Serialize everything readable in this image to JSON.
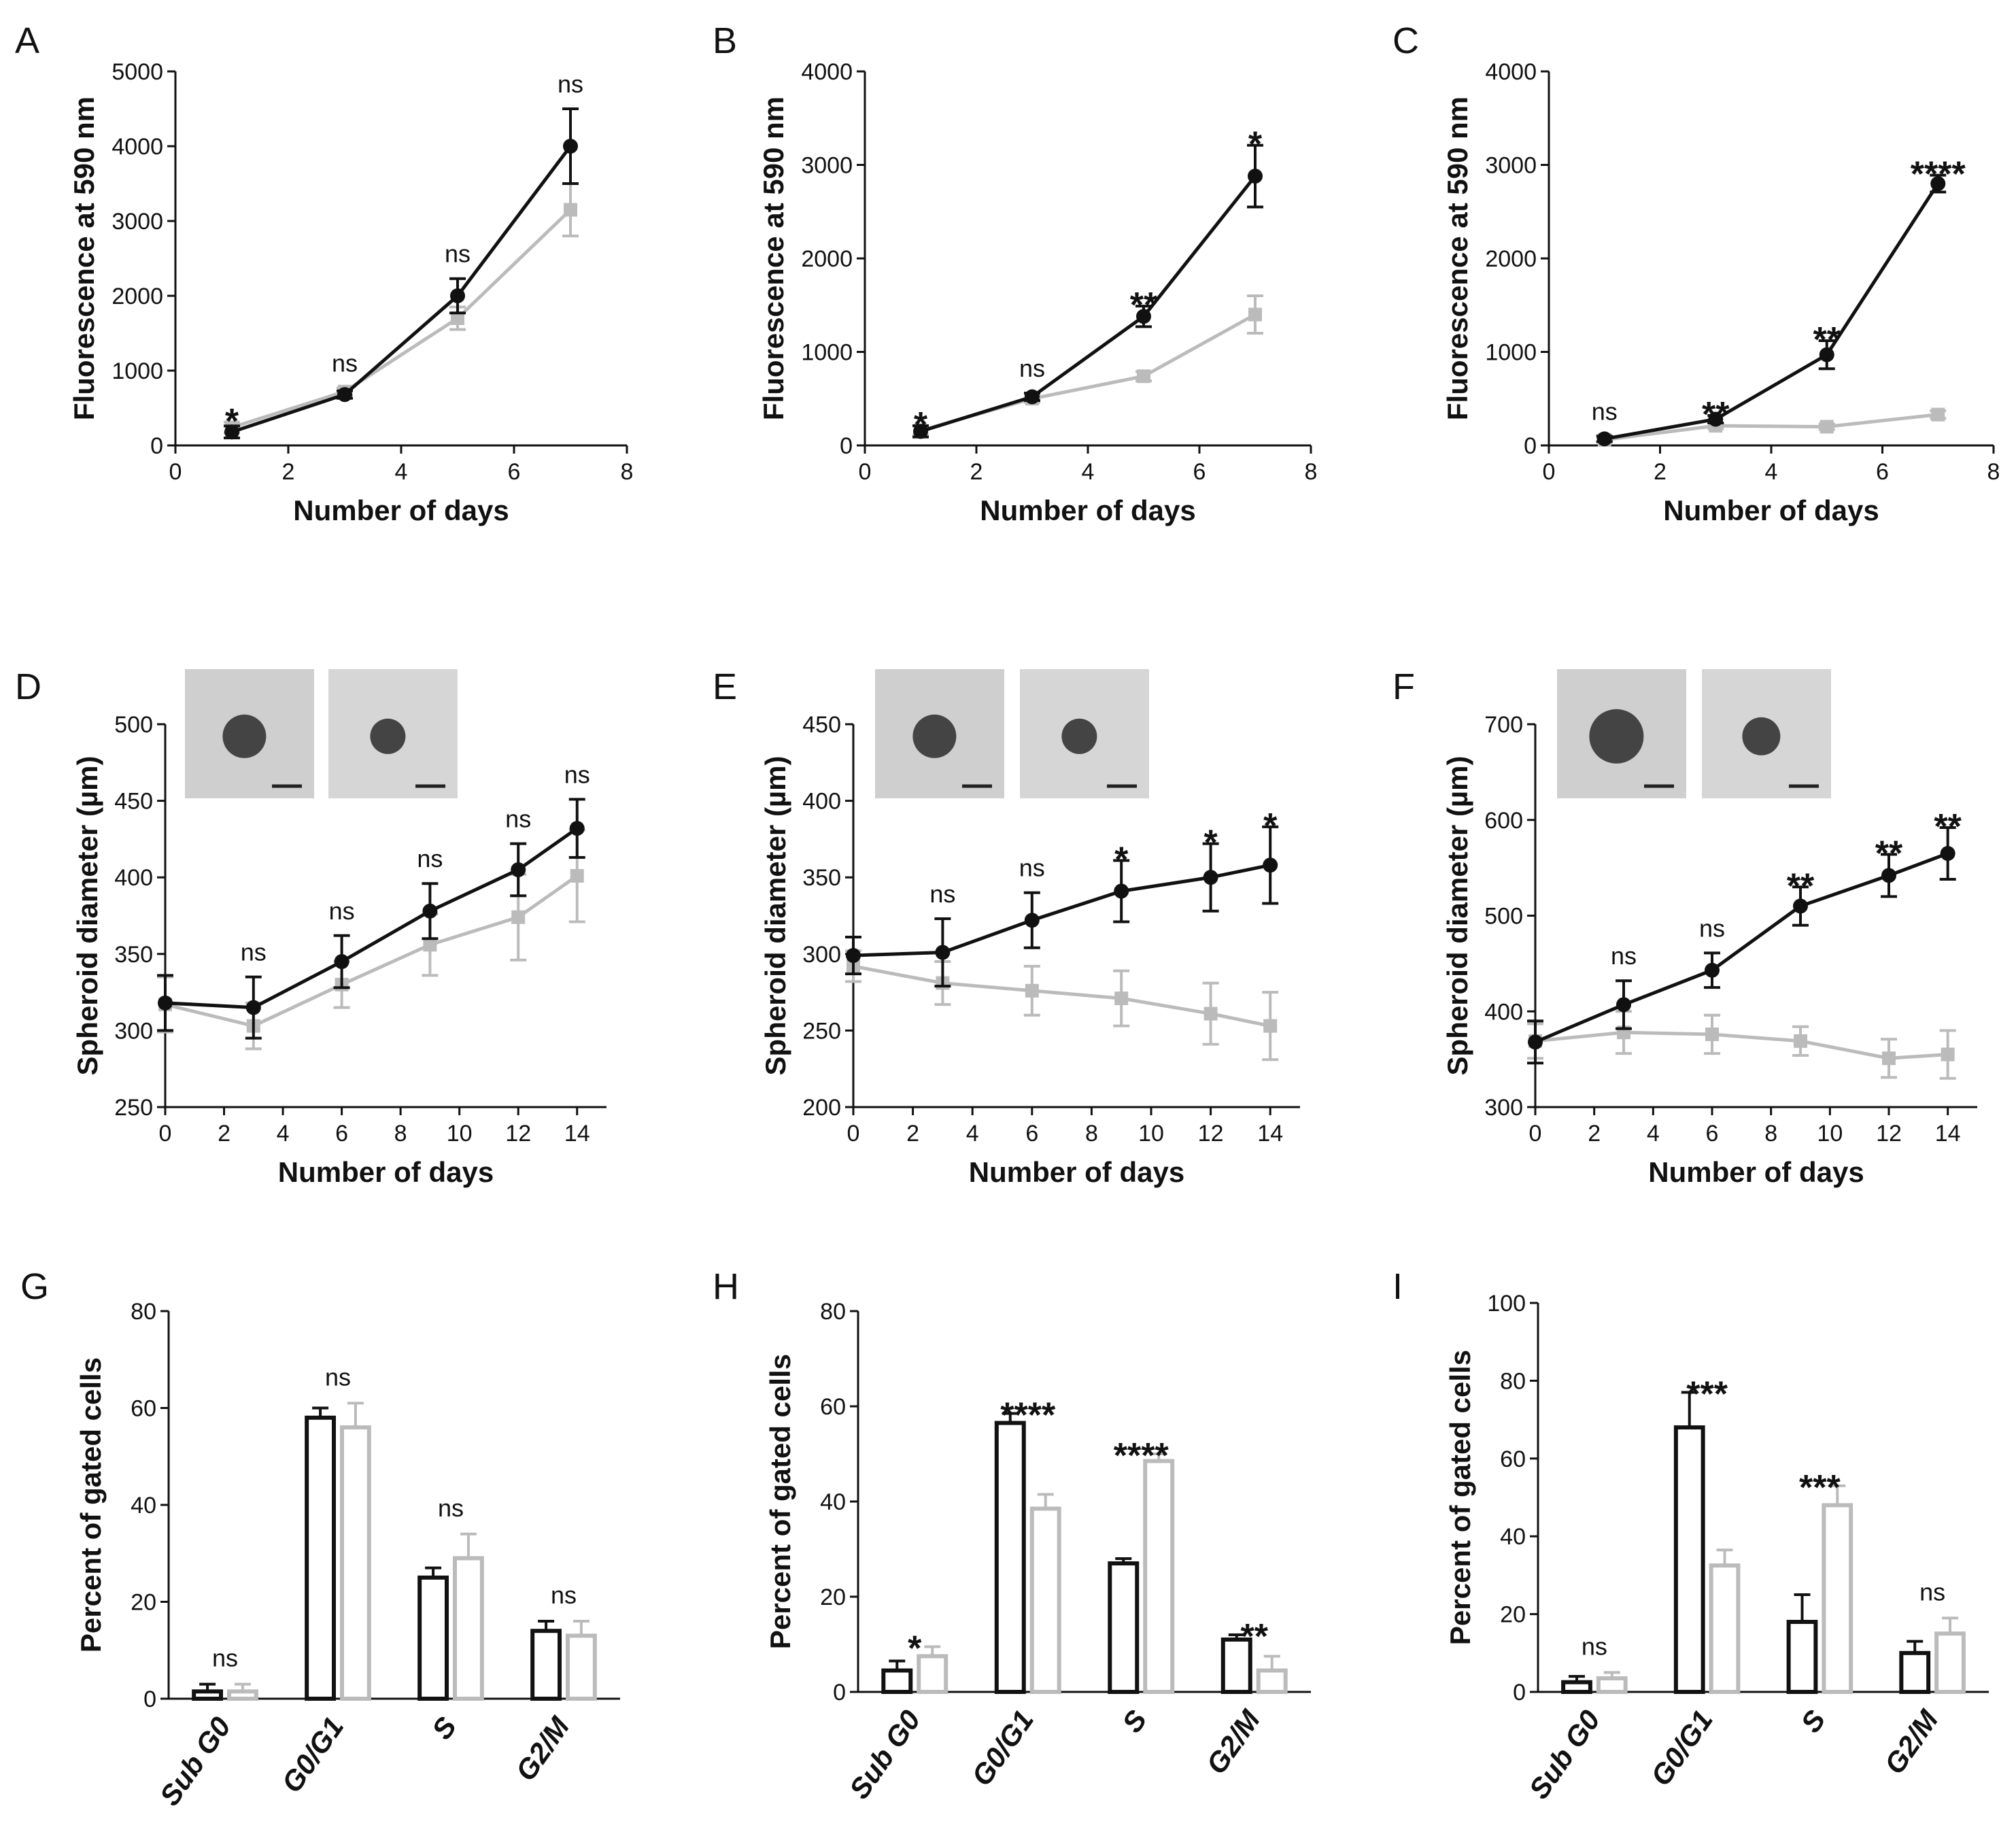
{
  "colors": {
    "dark": "#111111",
    "light": "#bbbbbb"
  },
  "chart_data": [
    {
      "panel": "A",
      "type": "line",
      "xlabel": "Number of days",
      "ylabel": "Fluorescence at 590 nm",
      "xlim": [
        0,
        8
      ],
      "ylim": [
        0,
        5000
      ],
      "xticks": [
        "0",
        "2",
        "4",
        "6",
        "8"
      ],
      "yticks": [
        "0",
        "1000",
        "2000",
        "3000",
        "4000",
        "5000"
      ],
      "x": [
        1,
        3,
        5,
        7
      ],
      "series": [
        {
          "name": "dark",
          "values": [
            180,
            680,
            2000,
            4000
          ],
          "err": [
            80,
            50,
            230,
            500
          ]
        },
        {
          "name": "light",
          "values": [
            240,
            720,
            1700,
            3150
          ],
          "err": [
            70,
            50,
            150,
            350
          ]
        }
      ],
      "sig": [
        "*",
        "ns",
        "ns",
        "ns"
      ]
    },
    {
      "panel": "B",
      "type": "line",
      "xlabel": "Number of days",
      "ylabel": "Fluorescence at 590 nm",
      "xlim": [
        0,
        8
      ],
      "ylim": [
        0,
        4000
      ],
      "xticks": [
        "0",
        "2",
        "4",
        "6",
        "8"
      ],
      "yticks": [
        "0",
        "1000",
        "2000",
        "3000",
        "4000"
      ],
      "x": [
        1,
        3,
        5,
        7
      ],
      "series": [
        {
          "name": "dark",
          "values": [
            150,
            520,
            1380,
            2880
          ],
          "err": [
            60,
            40,
            110,
            330
          ]
        },
        {
          "name": "light",
          "values": [
            160,
            500,
            740,
            1400
          ],
          "err": [
            50,
            40,
            50,
            200
          ]
        }
      ],
      "sig": [
        "*",
        "ns",
        "**",
        "*"
      ]
    },
    {
      "panel": "C",
      "type": "line",
      "xlabel": "Number of days",
      "ylabel": "Fluorescence at 590 nm",
      "xlim": [
        0,
        8
      ],
      "ylim": [
        0,
        4000
      ],
      "xticks": [
        "0",
        "2",
        "4",
        "6",
        "8"
      ],
      "yticks": [
        "0",
        "1000",
        "2000",
        "3000",
        "4000"
      ],
      "x": [
        1,
        3,
        5,
        7
      ],
      "series": [
        {
          "name": "dark",
          "values": [
            70,
            280,
            970,
            2800
          ],
          "err": [
            30,
            40,
            150,
            90
          ]
        },
        {
          "name": "light",
          "values": [
            60,
            210,
            200,
            330
          ],
          "err": [
            20,
            30,
            30,
            40
          ]
        }
      ],
      "sig": [
        "ns",
        "**",
        "**",
        "****"
      ]
    },
    {
      "panel": "D",
      "type": "line",
      "xlabel": "Number of days",
      "ylabel": "Spheroid diameter (µm)",
      "xlim": [
        0,
        15
      ],
      "ylim": [
        250,
        500
      ],
      "xticks": [
        "0",
        "2",
        "4",
        "6",
        "8",
        "10",
        "12",
        "14"
      ],
      "yticks": [
        "250",
        "300",
        "350",
        "400",
        "450",
        "500"
      ],
      "x": [
        0,
        3,
        6,
        9,
        12,
        14
      ],
      "series": [
        {
          "name": "dark",
          "values": [
            318,
            315,
            345,
            378,
            405,
            432
          ],
          "err": [
            18,
            20,
            17,
            18,
            17,
            19
          ]
        },
        {
          "name": "light",
          "values": [
            317,
            303,
            330,
            356,
            374,
            401
          ],
          "err": [
            18,
            15,
            15,
            20,
            28,
            30
          ]
        }
      ],
      "sig": [
        "",
        "ns",
        "ns",
        "ns",
        "ns",
        "ns"
      ]
    },
    {
      "panel": "E",
      "type": "line",
      "xlabel": "Number of days",
      "ylabel": "Spheroid diameter (µm)",
      "xlim": [
        0,
        15
      ],
      "ylim": [
        200,
        450
      ],
      "xticks": [
        "0",
        "2",
        "4",
        "6",
        "8",
        "10",
        "12",
        "14"
      ],
      "yticks": [
        "200",
        "250",
        "300",
        "350",
        "400",
        "450"
      ],
      "x": [
        0,
        3,
        6,
        9,
        12,
        14
      ],
      "series": [
        {
          "name": "dark",
          "values": [
            299,
            301,
            322,
            341,
            350,
            358
          ],
          "err": [
            12,
            22,
            18,
            20,
            22,
            25
          ]
        },
        {
          "name": "light",
          "values": [
            292,
            281,
            276,
            271,
            261,
            253
          ],
          "err": [
            10,
            14,
            16,
            18,
            20,
            22
          ]
        }
      ],
      "sig": [
        "",
        "ns",
        "ns",
        "*",
        "*",
        "*"
      ]
    },
    {
      "panel": "F",
      "type": "line",
      "xlabel": "Number of days",
      "ylabel": "Spheroid diameter (µm)",
      "xlim": [
        0,
        15
      ],
      "ylim": [
        300,
        700
      ],
      "xticks": [
        "0",
        "2",
        "4",
        "6",
        "8",
        "10",
        "12",
        "14"
      ],
      "yticks": [
        "300",
        "400",
        "500",
        "600",
        "700"
      ],
      "x": [
        0,
        3,
        6,
        9,
        12,
        14
      ],
      "series": [
        {
          "name": "dark",
          "values": [
            368,
            407,
            443,
            510,
            542,
            565
          ],
          "err": [
            22,
            25,
            18,
            20,
            22,
            27
          ]
        },
        {
          "name": "light",
          "values": [
            369,
            378,
            376,
            369,
            351,
            355
          ],
          "err": [
            18,
            22,
            20,
            15,
            20,
            25
          ]
        }
      ],
      "sig": [
        "",
        "ns",
        "ns",
        "**",
        "**",
        "**"
      ]
    },
    {
      "panel": "G",
      "type": "bar",
      "ylabel": "Percent of gated cells",
      "ylim": [
        0,
        80
      ],
      "yticks": [
        "0",
        "20",
        "40",
        "60",
        "80"
      ],
      "categories": [
        "Sub G0",
        "G0/G1",
        "S",
        "G2/M"
      ],
      "series": [
        {
          "name": "dark",
          "values": [
            1.5,
            58,
            25,
            14
          ],
          "err": [
            1.5,
            2,
            2,
            2
          ]
        },
        {
          "name": "light",
          "values": [
            1.5,
            56,
            29,
            13
          ],
          "err": [
            1.5,
            5,
            5,
            3
          ]
        }
      ],
      "sig": [
        "ns",
        "ns",
        "ns",
        "ns"
      ]
    },
    {
      "panel": "H",
      "type": "bar",
      "ylabel": "Percent of gated cells",
      "ylim": [
        0,
        80
      ],
      "yticks": [
        "0",
        "20",
        "40",
        "60",
        "80"
      ],
      "categories": [
        "Sub G0",
        "G0/G1",
        "S",
        "G2/M"
      ],
      "series": [
        {
          "name": "dark",
          "values": [
            4.5,
            56.5,
            27,
            11
          ],
          "err": [
            2,
            2,
            1,
            1
          ]
        },
        {
          "name": "light",
          "values": [
            7.5,
            38.5,
            48.5,
            4.5
          ],
          "err": [
            2,
            3,
            1.5,
            3
          ]
        }
      ],
      "sig": [
        "*",
        "****",
        "****",
        "**"
      ]
    },
    {
      "panel": "I",
      "type": "bar",
      "ylabel": "Percent of gated cells",
      "ylim": [
        0,
        100
      ],
      "yticks": [
        "0",
        "20",
        "40",
        "60",
        "80",
        "100"
      ],
      "categories": [
        "Sub G0",
        "G0/G1",
        "S",
        "G2/M"
      ],
      "series": [
        {
          "name": "dark",
          "values": [
            2.5,
            68,
            18,
            10
          ],
          "err": [
            1.5,
            9,
            7,
            3
          ]
        },
        {
          "name": "light",
          "values": [
            3.5,
            32.5,
            48,
            15
          ],
          "err": [
            1.5,
            4,
            5,
            4
          ]
        }
      ],
      "sig": [
        "ns",
        "***",
        "***",
        "ns"
      ]
    }
  ]
}
